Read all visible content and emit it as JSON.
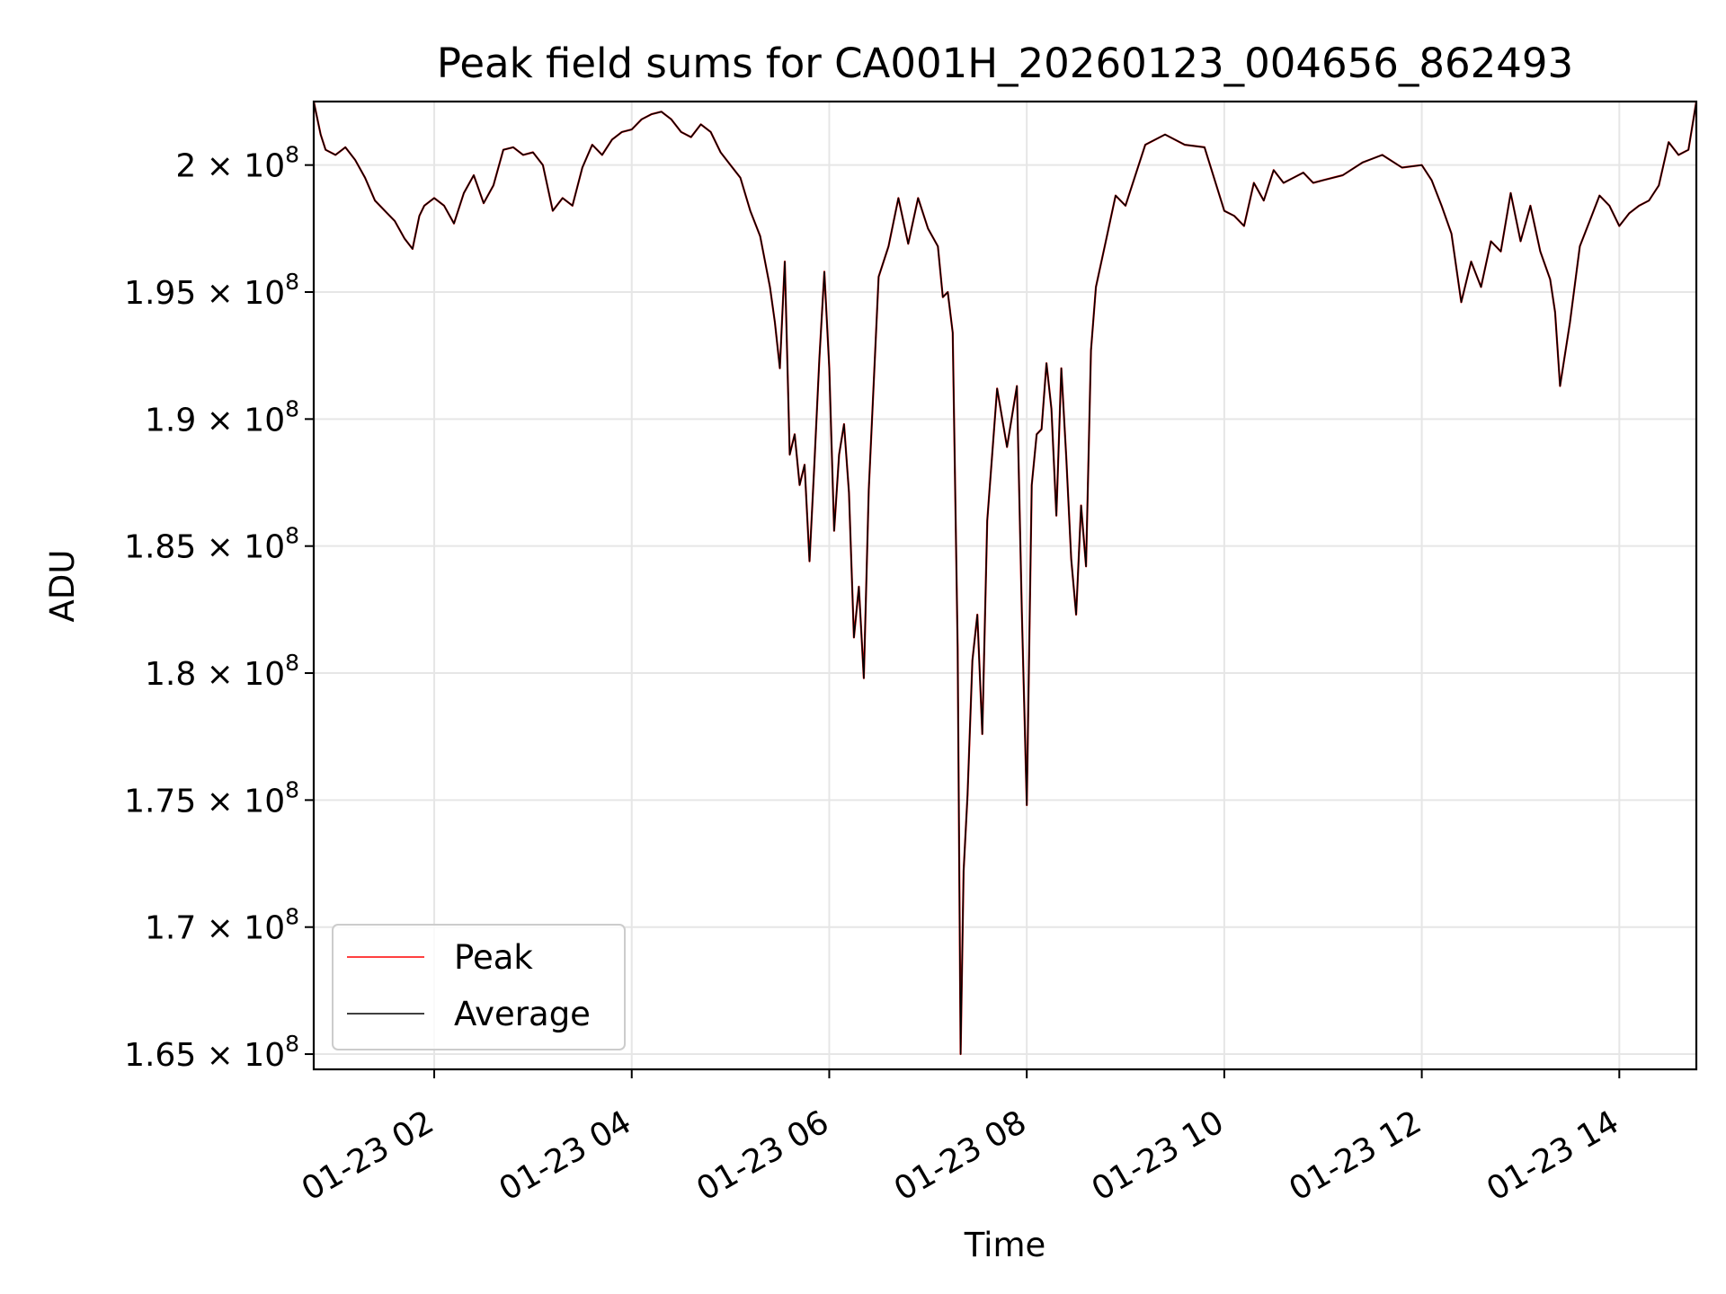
{
  "chart_data": {
    "type": "line",
    "title": "Peak field sums for CA001H_20260123_004656_862493",
    "xlabel": "Time",
    "ylabel": "ADU",
    "x_unit": "hours on 2026-01-23",
    "xlim": [
      0.78,
      14.78
    ],
    "ylim": [
      164400000,
      202500000
    ],
    "x_ticks": [
      {
        "value": 2,
        "label": "01-23 02"
      },
      {
        "value": 4,
        "label": "01-23 04"
      },
      {
        "value": 6,
        "label": "01-23 06"
      },
      {
        "value": 8,
        "label": "01-23 08"
      },
      {
        "value": 10,
        "label": "01-23 10"
      },
      {
        "value": 12,
        "label": "01-23 12"
      },
      {
        "value": 14,
        "label": "01-23 14"
      }
    ],
    "y_ticks": [
      {
        "value": 165000000,
        "mantissa": "1.65",
        "exponent": "8"
      },
      {
        "value": 170000000,
        "mantissa": "1.7",
        "exponent": "8"
      },
      {
        "value": 175000000,
        "mantissa": "1.75",
        "exponent": "8"
      },
      {
        "value": 180000000,
        "mantissa": "1.8",
        "exponent": "8"
      },
      {
        "value": 185000000,
        "mantissa": "1.85",
        "exponent": "8"
      },
      {
        "value": 190000000,
        "mantissa": "1.9",
        "exponent": "8"
      },
      {
        "value": 195000000,
        "mantissa": "1.95",
        "exponent": "8"
      },
      {
        "value": 200000000,
        "mantissa": "2",
        "exponent": "8"
      }
    ],
    "grid": true,
    "legend": {
      "position": "lower-left",
      "entries": [
        "Peak",
        "Average"
      ]
    },
    "colors": {
      "Peak": "#ff0000",
      "Average": "#000000"
    },
    "series": [
      {
        "name": "Peak",
        "x": [
          0.78,
          0.85,
          0.9,
          1.0,
          1.1,
          1.2,
          1.3,
          1.4,
          1.5,
          1.6,
          1.7,
          1.78,
          1.85,
          1.9,
          2.0,
          2.1,
          2.2,
          2.3,
          2.4,
          2.5,
          2.6,
          2.7,
          2.8,
          2.9,
          3.0,
          3.1,
          3.2,
          3.3,
          3.4,
          3.5,
          3.6,
          3.7,
          3.8,
          3.9,
          4.0,
          4.1,
          4.2,
          4.3,
          4.4,
          4.5,
          4.6,
          4.7,
          4.8,
          4.9,
          5.0,
          5.1,
          5.2,
          5.3,
          5.4,
          5.45,
          5.5,
          5.55,
          5.6,
          5.65,
          5.7,
          5.75,
          5.8,
          5.85,
          5.9,
          5.95,
          6.0,
          6.05,
          6.1,
          6.15,
          6.2,
          6.25,
          6.3,
          6.35,
          6.4,
          6.5,
          6.6,
          6.7,
          6.8,
          6.9,
          7.0,
          7.1,
          7.15,
          7.2,
          7.25,
          7.3,
          7.33,
          7.36,
          7.4,
          7.45,
          7.5,
          7.55,
          7.6,
          7.7,
          7.8,
          7.9,
          7.95,
          8.0,
          8.05,
          8.1,
          8.15,
          8.2,
          8.25,
          8.3,
          8.35,
          8.4,
          8.45,
          8.5,
          8.55,
          8.6,
          8.65,
          8.7,
          8.8,
          8.9,
          9.0,
          9.2,
          9.4,
          9.6,
          9.8,
          10.0,
          10.1,
          10.2,
          10.3,
          10.4,
          10.5,
          10.6,
          10.7,
          10.8,
          10.9,
          11.0,
          11.2,
          11.4,
          11.6,
          11.8,
          12.0,
          12.1,
          12.2,
          12.3,
          12.4,
          12.5,
          12.6,
          12.7,
          12.8,
          12.9,
          13.0,
          13.1,
          13.2,
          13.3,
          13.35,
          13.4,
          13.5,
          13.6,
          13.7,
          13.8,
          13.9,
          14.0,
          14.1,
          14.2,
          14.3,
          14.4,
          14.5,
          14.6,
          14.7,
          14.78
        ],
        "y": [
          202500000,
          201200000,
          200600000,
          200400000,
          200700000,
          200200000,
          199500000,
          198600000,
          198200000,
          197800000,
          197100000,
          196700000,
          198000000,
          198400000,
          198700000,
          198400000,
          197700000,
          198900000,
          199600000,
          198500000,
          199200000,
          200600000,
          200700000,
          200400000,
          200500000,
          200000000,
          198200000,
          198700000,
          198400000,
          199900000,
          200800000,
          200400000,
          201000000,
          201300000,
          201400000,
          201800000,
          202000000,
          202100000,
          201800000,
          201300000,
          201100000,
          201600000,
          201300000,
          200500000,
          200000000,
          199500000,
          198200000,
          197200000,
          195200000,
          193800000,
          192000000,
          196200000,
          188600000,
          189400000,
          187400000,
          188200000,
          184400000,
          188300000,
          192400000,
          195800000,
          192000000,
          185600000,
          188600000,
          189800000,
          187100000,
          181400000,
          183400000,
          179800000,
          187200000,
          195600000,
          196800000,
          198700000,
          196900000,
          198700000,
          197500000,
          196800000,
          194800000,
          195000000,
          193400000,
          181000000,
          165000000,
          172200000,
          175200000,
          180500000,
          182300000,
          177600000,
          186000000,
          191200000,
          188900000,
          191300000,
          182400000,
          174800000,
          187400000,
          189400000,
          189600000,
          192200000,
          190400000,
          186200000,
          192000000,
          188500000,
          184500000,
          182300000,
          186600000,
          184200000,
          192700000,
          195200000,
          197000000,
          198800000,
          198400000,
          200800000,
          201200000,
          200800000,
          200700000,
          198200000,
          198000000,
          197600000,
          199300000,
          198600000,
          199800000,
          199300000,
          199500000,
          199700000,
          199300000,
          199400000,
          199600000,
          200100000,
          200400000,
          199900000,
          200000000,
          199400000,
          198400000,
          197300000,
          194600000,
          196200000,
          195200000,
          197000000,
          196600000,
          198900000,
          197000000,
          198400000,
          196600000,
          195500000,
          194200000,
          191300000,
          193800000,
          196800000,
          197800000,
          198800000,
          198400000,
          197600000,
          198100000,
          198400000,
          198600000,
          199200000,
          200900000,
          200400000,
          200600000,
          202500000
        ]
      },
      {
        "name": "Average",
        "x": [
          0.78,
          0.85,
          0.9,
          1.0,
          1.1,
          1.2,
          1.3,
          1.4,
          1.5,
          1.6,
          1.7,
          1.78,
          1.85,
          1.9,
          2.0,
          2.1,
          2.2,
          2.3,
          2.4,
          2.5,
          2.6,
          2.7,
          2.8,
          2.9,
          3.0,
          3.1,
          3.2,
          3.3,
          3.4,
          3.5,
          3.6,
          3.7,
          3.8,
          3.9,
          4.0,
          4.1,
          4.2,
          4.3,
          4.4,
          4.5,
          4.6,
          4.7,
          4.8,
          4.9,
          5.0,
          5.1,
          5.2,
          5.3,
          5.4,
          5.45,
          5.5,
          5.55,
          5.6,
          5.65,
          5.7,
          5.75,
          5.8,
          5.85,
          5.9,
          5.95,
          6.0,
          6.05,
          6.1,
          6.15,
          6.2,
          6.25,
          6.3,
          6.35,
          6.4,
          6.5,
          6.6,
          6.7,
          6.8,
          6.9,
          7.0,
          7.1,
          7.15,
          7.2,
          7.25,
          7.3,
          7.33,
          7.36,
          7.4,
          7.45,
          7.5,
          7.55,
          7.6,
          7.7,
          7.8,
          7.9,
          7.95,
          8.0,
          8.05,
          8.1,
          8.15,
          8.2,
          8.25,
          8.3,
          8.35,
          8.4,
          8.45,
          8.5,
          8.55,
          8.6,
          8.65,
          8.7,
          8.8,
          8.9,
          9.0,
          9.2,
          9.4,
          9.6,
          9.8,
          10.0,
          10.1,
          10.2,
          10.3,
          10.4,
          10.5,
          10.6,
          10.7,
          10.8,
          10.9,
          11.0,
          11.2,
          11.4,
          11.6,
          11.8,
          12.0,
          12.1,
          12.2,
          12.3,
          12.4,
          12.5,
          12.6,
          12.7,
          12.8,
          12.9,
          13.0,
          13.1,
          13.2,
          13.3,
          13.35,
          13.4,
          13.5,
          13.6,
          13.7,
          13.8,
          13.9,
          14.0,
          14.1,
          14.2,
          14.3,
          14.4,
          14.5,
          14.6,
          14.7,
          14.78
        ],
        "y": [
          202500000,
          201200000,
          200600000,
          200400000,
          200700000,
          200200000,
          199500000,
          198600000,
          198200000,
          197800000,
          197100000,
          196700000,
          198000000,
          198400000,
          198700000,
          198400000,
          197700000,
          198900000,
          199600000,
          198500000,
          199200000,
          200600000,
          200700000,
          200400000,
          200500000,
          200000000,
          198200000,
          198700000,
          198400000,
          199900000,
          200800000,
          200400000,
          201000000,
          201300000,
          201400000,
          201800000,
          202000000,
          202100000,
          201800000,
          201300000,
          201100000,
          201600000,
          201300000,
          200500000,
          200000000,
          199500000,
          198200000,
          197200000,
          195200000,
          193800000,
          192000000,
          196200000,
          188600000,
          189400000,
          187400000,
          188200000,
          184400000,
          188300000,
          192400000,
          195800000,
          192000000,
          185600000,
          188600000,
          189800000,
          187100000,
          181400000,
          183400000,
          179800000,
          187200000,
          195600000,
          196800000,
          198700000,
          196900000,
          198700000,
          197500000,
          196800000,
          194800000,
          195000000,
          193400000,
          181000000,
          165000000,
          172200000,
          175200000,
          180500000,
          182300000,
          177600000,
          186000000,
          191200000,
          188900000,
          191300000,
          182400000,
          174800000,
          187400000,
          189400000,
          189600000,
          192200000,
          190400000,
          186200000,
          192000000,
          188500000,
          184500000,
          182300000,
          186600000,
          184200000,
          192700000,
          195200000,
          197000000,
          198800000,
          198400000,
          200800000,
          201200000,
          200800000,
          200700000,
          198200000,
          198000000,
          197600000,
          199300000,
          198600000,
          199800000,
          199300000,
          199500000,
          199700000,
          199300000,
          199400000,
          199600000,
          200100000,
          200400000,
          199900000,
          200000000,
          199400000,
          198400000,
          197300000,
          194600000,
          196200000,
          195200000,
          197000000,
          196600000,
          198900000,
          197000000,
          198400000,
          196600000,
          195500000,
          194200000,
          191300000,
          193800000,
          196800000,
          197800000,
          198800000,
          198400000,
          197600000,
          198100000,
          198400000,
          198600000,
          199200000,
          200900000,
          200400000,
          200600000,
          202500000
        ]
      }
    ]
  }
}
